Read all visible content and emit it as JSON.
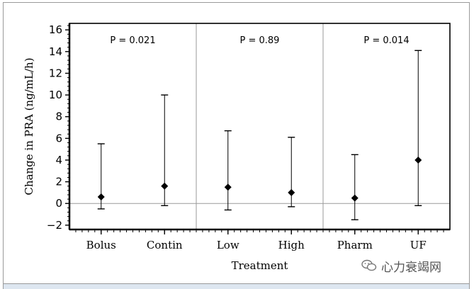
{
  "chart_data": {
    "type": "errorbar",
    "title": "",
    "xlabel": "Treatment",
    "ylabel": "Change in PRA (ng/mL/h)",
    "ylim": [
      -2.4,
      16.6
    ],
    "yticks": [
      -2,
      0,
      2,
      4,
      6,
      8,
      10,
      12,
      14,
      16
    ],
    "categories": [
      "Bolus",
      "Contin",
      "Low",
      "High",
      "Pharm",
      "UF"
    ],
    "points": [
      {
        "category": "Bolus",
        "value": 0.6,
        "low": -0.5,
        "high": 5.5
      },
      {
        "category": "Contin",
        "value": 1.6,
        "low": -0.2,
        "high": 10.0
      },
      {
        "category": "Low",
        "value": 1.5,
        "low": -0.6,
        "high": 6.7
      },
      {
        "category": "High",
        "value": 1.0,
        "low": -0.3,
        "high": 6.1
      },
      {
        "category": "Pharm",
        "value": 0.5,
        "low": -1.5,
        "high": 4.5
      },
      {
        "category": "UF",
        "value": 4.0,
        "low": -0.2,
        "high": 14.1
      }
    ],
    "groups": [
      {
        "categories": [
          "Bolus",
          "Contin"
        ],
        "p_label": "P = 0.021"
      },
      {
        "categories": [
          "Low",
          "High"
        ],
        "p_label": "P = 0.89"
      },
      {
        "categories": [
          "Pharm",
          "UF"
        ],
        "p_label": "P = 0.014"
      }
    ],
    "reference_line": 0,
    "grid": false
  },
  "watermark": {
    "text": "心力衰竭网",
    "icon": "wechat-icon"
  },
  "colors": {
    "marker": "#000000",
    "separator": "#9a9a9a",
    "zero_line": "#9a9a9a",
    "bottom_strip": "#dde6f0"
  }
}
